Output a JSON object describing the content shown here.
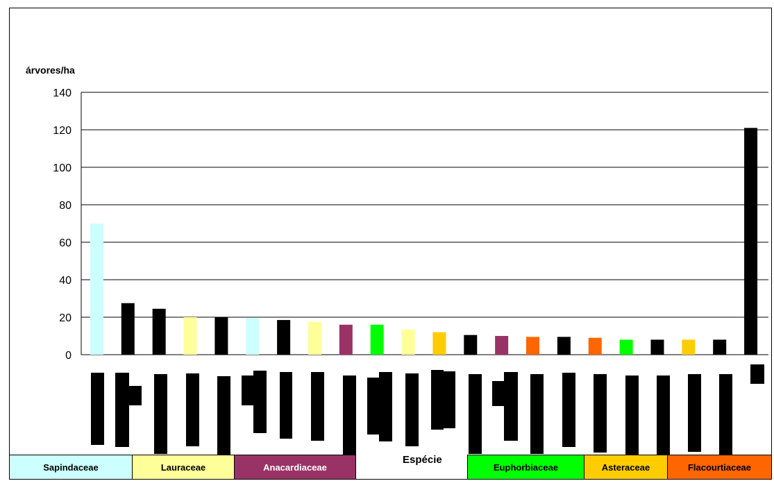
{
  "chart_data": {
    "type": "bar",
    "title": "",
    "ylabel": "árvores/ha",
    "xlabel": "Espécie",
    "ylim": [
      0,
      140
    ],
    "yticks": [
      0,
      20,
      40,
      60,
      80,
      100,
      120,
      140
    ],
    "grid": true,
    "values": [
      70,
      27.5,
      24.5,
      20,
      20,
      19.5,
      18.5,
      17.5,
      16,
      16,
      13.5,
      12,
      10.5,
      10,
      9.5,
      9.5,
      9,
      8,
      8,
      8,
      8,
      121
    ],
    "bar_colors": [
      "#ccffff",
      "#000000",
      "#000000",
      "#ffff99",
      "#000000",
      "#ccffff",
      "#000000",
      "#ffff99",
      "#993366",
      "#00ff00",
      "#ffff99",
      "#ffcc00",
      "#000000",
      "#993366",
      "#ff6600",
      "#000000",
      "#ff6600",
      "#00ff00",
      "#000000",
      "#ffcc00",
      "#000000",
      "#000000"
    ],
    "legend": [
      {
        "label": "Sapindaceae",
        "color": "#ccffff"
      },
      {
        "label": "Lauraceae",
        "color": "#ffff99"
      },
      {
        "label": "Anacardiaceae",
        "color": "#993366"
      },
      {
        "label": "Euphorbiaceae",
        "color": "#00ff00"
      },
      {
        "label": "Asteraceae",
        "color": "#ffcc00"
      },
      {
        "label": "Flacourtiaceae",
        "color": "#ff6600"
      }
    ]
  }
}
